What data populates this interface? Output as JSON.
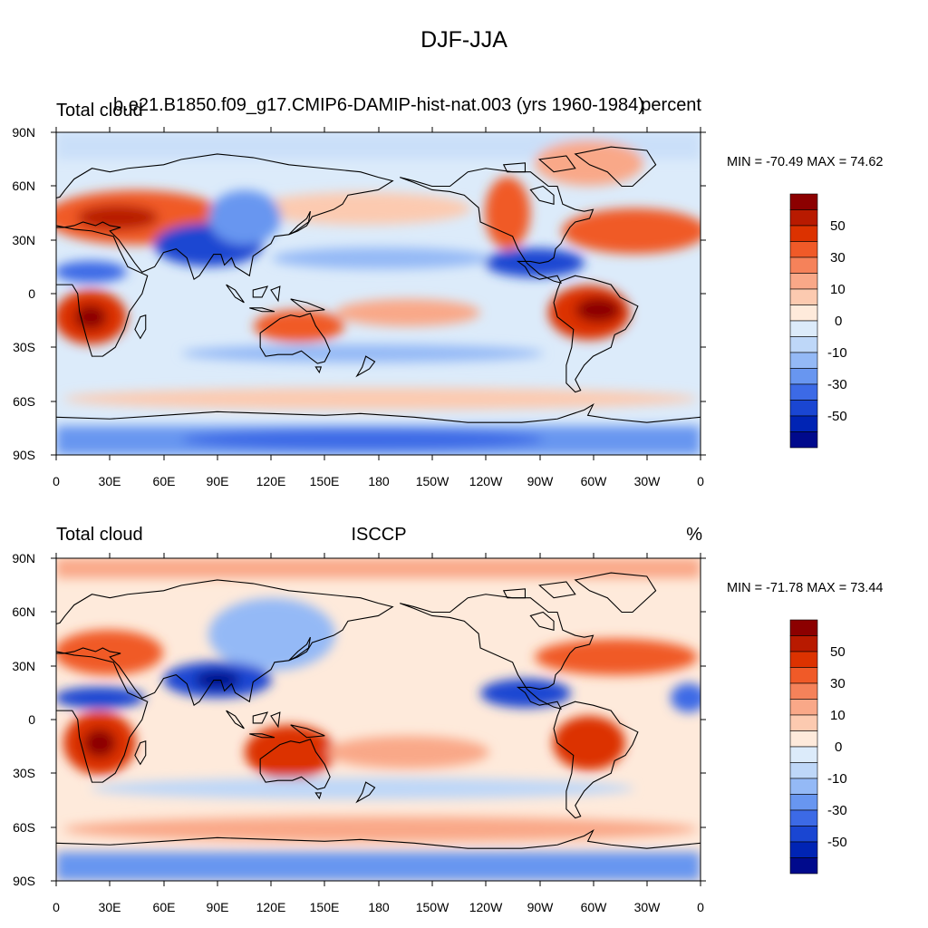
{
  "title": "DJF-JJA",
  "panels": [
    {
      "left_title": "Total cloud",
      "center_title": "b.e21.B1850.f09_g17.CMIP6-DAMIP-hist-nat.003 (yrs 1960-1984)",
      "right_title": "percent",
      "min_max": "MIN = -70.49 MAX =  74.62"
    },
    {
      "left_title": "Total cloud",
      "center_title": "ISCCP",
      "right_title": "%",
      "min_max": "MIN = -71.78 MAX =  73.44"
    }
  ],
  "lat_ticks": [
    "90N",
    "60N",
    "30N",
    "0",
    "30S",
    "60S",
    "90S"
  ],
  "lon_ticks": [
    "0",
    "30E",
    "60E",
    "90E",
    "120E",
    "150E",
    "180",
    "150W",
    "120W",
    "90W",
    "60W",
    "30W",
    "0"
  ],
  "colorbar": {
    "labels": [
      "50",
      "30",
      "10",
      "0",
      "-10",
      "-30",
      "-50"
    ],
    "colors": [
      "#8c0000",
      "#b81a00",
      "#dc3200",
      "#f05a28",
      "#f5825a",
      "#f9a888",
      "#fccab0",
      "#feeadb",
      "#dcebfa",
      "#bed7f8",
      "#94b9f6",
      "#6896f0",
      "#3c6ae6",
      "#1a46d2",
      "#0024b4",
      "#000a8c"
    ]
  }
}
